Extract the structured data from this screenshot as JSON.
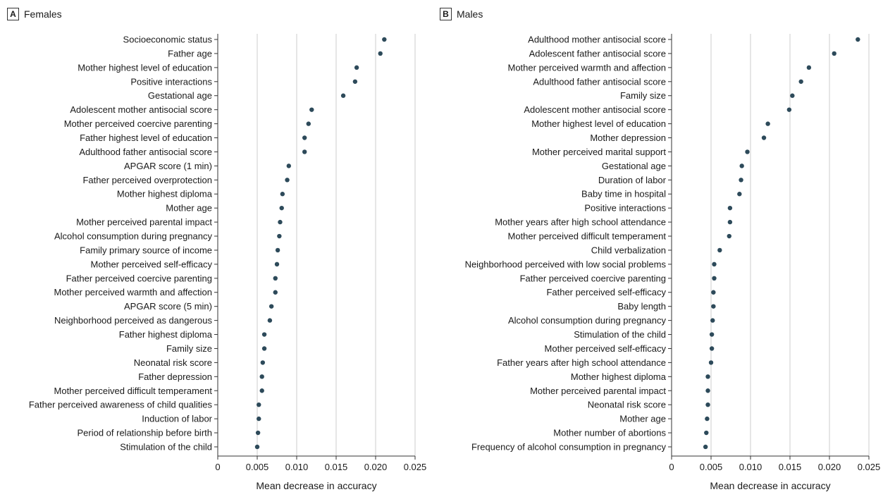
{
  "colors": {
    "point": "#2d4a5a",
    "grid": "#cccccc",
    "axis": "#333333"
  },
  "chart_data": [
    {
      "type": "scatter",
      "panel_label": "A",
      "title": "Females",
      "xlabel": "Mean decrease in accuracy",
      "xlim": [
        0,
        0.025
      ],
      "xticks": [
        0,
        0.005,
        0.01,
        0.015,
        0.02,
        0.025
      ],
      "xtick_labels": [
        "0",
        "0.005",
        "0.010",
        "0.015",
        "0.020",
        "0.025"
      ],
      "grid": true,
      "categories": [
        "Socioeconomic status",
        "Father age",
        "Mother highest level of education",
        "Positive interactions",
        "Gestational age",
        "Adolescent mother antisocial score",
        "Mother perceived coercive parenting",
        "Father highest level of education",
        "Adulthood father antisocial score",
        "APGAR score (1 min)",
        "Father perceived overprotection",
        "Mother highest diploma",
        "Mother age",
        "Mother perceived parental impact",
        "Alcohol consumption during pregnancy",
        "Family primary source of income",
        "Mother perceived self-efficacy",
        "Father perceived coercive parenting",
        "Mother perceived warmth and affection",
        "APGAR score (5 min)",
        "Neighborhood perceived as dangerous",
        "Father highest diploma",
        "Family size",
        "Neonatal risk score",
        "Father depression",
        "Mother perceived difficult temperament",
        "Father perceived awareness of child qualities",
        "Induction of labor",
        "Period of relationship before birth",
        "Stimulation of the child"
      ],
      "values": [
        0.0211,
        0.0206,
        0.0176,
        0.0174,
        0.0159,
        0.0119,
        0.0115,
        0.011,
        0.011,
        0.009,
        0.0088,
        0.0082,
        0.0081,
        0.0079,
        0.0078,
        0.0076,
        0.0075,
        0.0073,
        0.0073,
        0.0068,
        0.0066,
        0.0059,
        0.0059,
        0.0057,
        0.0056,
        0.0056,
        0.0052,
        0.0052,
        0.0051,
        0.005
      ]
    },
    {
      "type": "scatter",
      "panel_label": "B",
      "title": "Males",
      "xlabel": "Mean decrease in accuracy",
      "xlim": [
        0,
        0.025
      ],
      "xticks": [
        0,
        0.005,
        0.01,
        0.015,
        0.02,
        0.025
      ],
      "xtick_labels": [
        "0",
        "0.005",
        "0.010",
        "0.015",
        "0.020",
        "0.025"
      ],
      "grid": true,
      "categories": [
        "Adulthood mother antisocial score",
        "Adolescent father antisocial score",
        "Mother perceived warmth and affection",
        "Adulthood father antisocial score",
        "Family size",
        "Adolescent mother antisocial score",
        "Mother highest level of education",
        "Mother depression",
        "Mother perceived marital support",
        "Gestational age",
        "Duration of labor",
        "Baby time in hospital",
        "Positive interactions",
        "Mother years after high school attendance",
        "Mother perceived difficult temperament",
        "Child verbalization",
        "Neighborhood perceived with low social problems",
        "Father perceived coercive parenting",
        "Father perceived self-efficacy",
        "Baby length",
        "Alcohol consumption during pregnancy",
        "Stimulation of the child",
        "Mother perceived self-efficacy",
        "Father years after high school attendance",
        "Mother highest diploma",
        "Mother perceived parental impact",
        "Neonatal risk score",
        "Mother age",
        "Mother number of abortions",
        "Frequency of alcohol consumption in pregnancy"
      ],
      "values": [
        0.0236,
        0.0206,
        0.0174,
        0.0164,
        0.0153,
        0.0149,
        0.0122,
        0.0117,
        0.0096,
        0.0089,
        0.0088,
        0.0086,
        0.0074,
        0.0074,
        0.0073,
        0.0061,
        0.0054,
        0.0054,
        0.0053,
        0.0053,
        0.0052,
        0.0051,
        0.0051,
        0.005,
        0.0046,
        0.0046,
        0.0046,
        0.0045,
        0.0044,
        0.0043
      ]
    }
  ]
}
